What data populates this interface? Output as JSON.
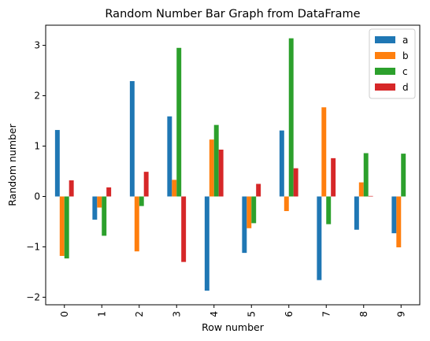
{
  "chart_data": {
    "type": "bar",
    "title": "Random Number Bar Graph from DataFrame",
    "xlabel": "Row number",
    "ylabel": "Random number",
    "categories": [
      "0",
      "1",
      "2",
      "3",
      "4",
      "5",
      "6",
      "7",
      "8",
      "9"
    ],
    "ylim": [
      -2.15,
      3.4
    ],
    "yticks": [
      -2,
      -1,
      0,
      1,
      2,
      3
    ],
    "ytick_labels": [
      "−2",
      "−1",
      "0",
      "1",
      "2",
      "3"
    ],
    "grid": false,
    "legend_position": "top-right",
    "series": [
      {
        "name": "a",
        "color": "#1f77b4",
        "values": [
          1.32,
          -0.46,
          2.29,
          1.59,
          -1.87,
          -1.12,
          1.31,
          -1.66,
          -0.66,
          -0.73
        ]
      },
      {
        "name": "b",
        "color": "#ff7f0e",
        "values": [
          -1.18,
          -0.22,
          -1.09,
          0.33,
          1.13,
          -0.63,
          -0.29,
          1.77,
          0.28,
          -1.01
        ]
      },
      {
        "name": "c",
        "color": "#2ca02c",
        "values": [
          -1.23,
          -0.78,
          -0.19,
          2.95,
          1.42,
          -0.53,
          3.14,
          -0.55,
          0.86,
          0.85
        ]
      },
      {
        "name": "d",
        "color": "#d62728",
        "values": [
          0.32,
          0.18,
          0.49,
          -1.3,
          0.93,
          0.25,
          0.56,
          0.76,
          0.01,
          0.0
        ]
      }
    ]
  }
}
